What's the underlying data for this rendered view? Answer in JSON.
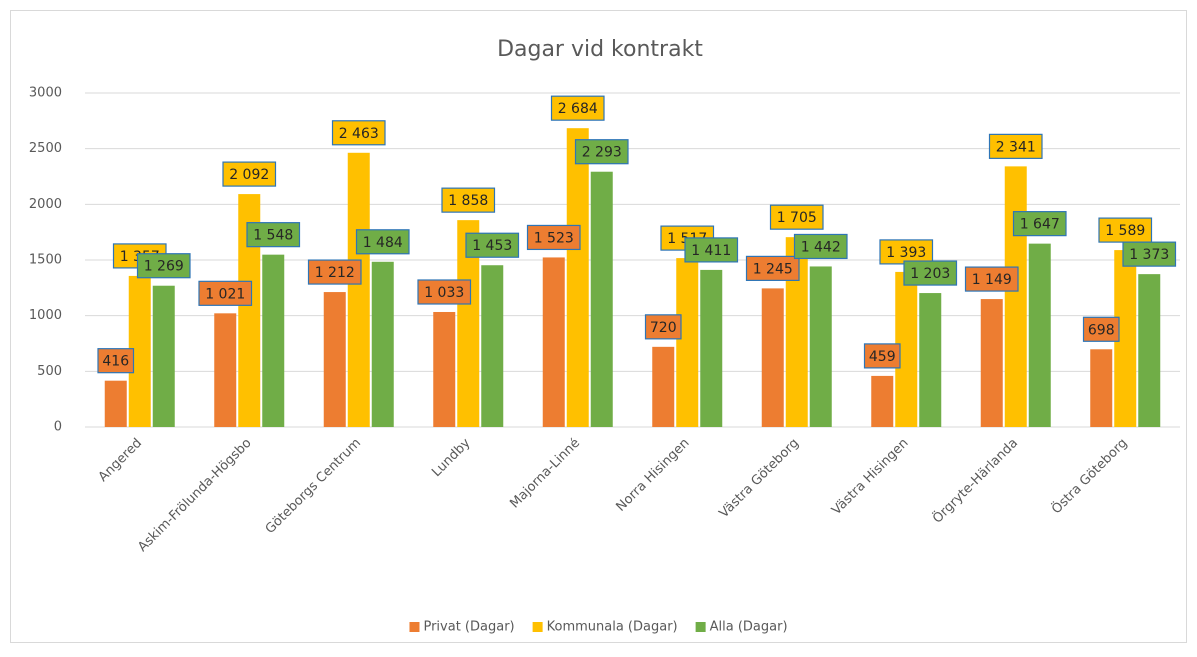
{
  "chart_data": {
    "type": "bar",
    "title": "Dagar vid kontrakt",
    "categories": [
      "Angered",
      "Askim-Frölunda-Högsbo",
      "Göteborgs Centrum",
      "Lundby",
      "Majorna-Linné",
      "Norra Hisingen",
      "Västra Göteborg",
      "Västra Hisingen",
      "Örgryte-Härlanda",
      "Östra Göteborg"
    ],
    "series": [
      {
        "name": "Privat (Dagar)",
        "color": "#ed7d31",
        "values": [
          416,
          1021,
          1212,
          1033,
          1523,
          720,
          1245,
          459,
          1149,
          698
        ],
        "value_labels": [
          "416",
          "1 021",
          "1 212",
          "1 033",
          "1 523",
          "720",
          "1 245",
          "459",
          "1 149",
          "698"
        ]
      },
      {
        "name": "Kommunala (Dagar)",
        "color": "#ffc000",
        "values": [
          1357,
          2092,
          2463,
          1858,
          2684,
          1517,
          1705,
          1393,
          2341,
          1589
        ],
        "value_labels": [
          "1 357",
          "2 092",
          "2 463",
          "1 858",
          "2 684",
          "1 517",
          "1 705",
          "1 393",
          "2 341",
          "1 589"
        ]
      },
      {
        "name": "Alla (Dagar)",
        "color": "#70ad47",
        "values": [
          1269,
          1548,
          1484,
          1453,
          2293,
          1411,
          1442,
          1203,
          1647,
          1373
        ],
        "value_labels": [
          "1 269",
          "1 548",
          "1 484",
          "1 453",
          "2 293",
          "1 411",
          "1 442",
          "1 203",
          "1 647",
          "1 373"
        ]
      }
    ],
    "ylim": [
      0,
      3000
    ],
    "yticks": [
      0,
      500,
      1000,
      1500,
      2000,
      2500,
      3000
    ],
    "grid": true,
    "legend": "bottom"
  }
}
